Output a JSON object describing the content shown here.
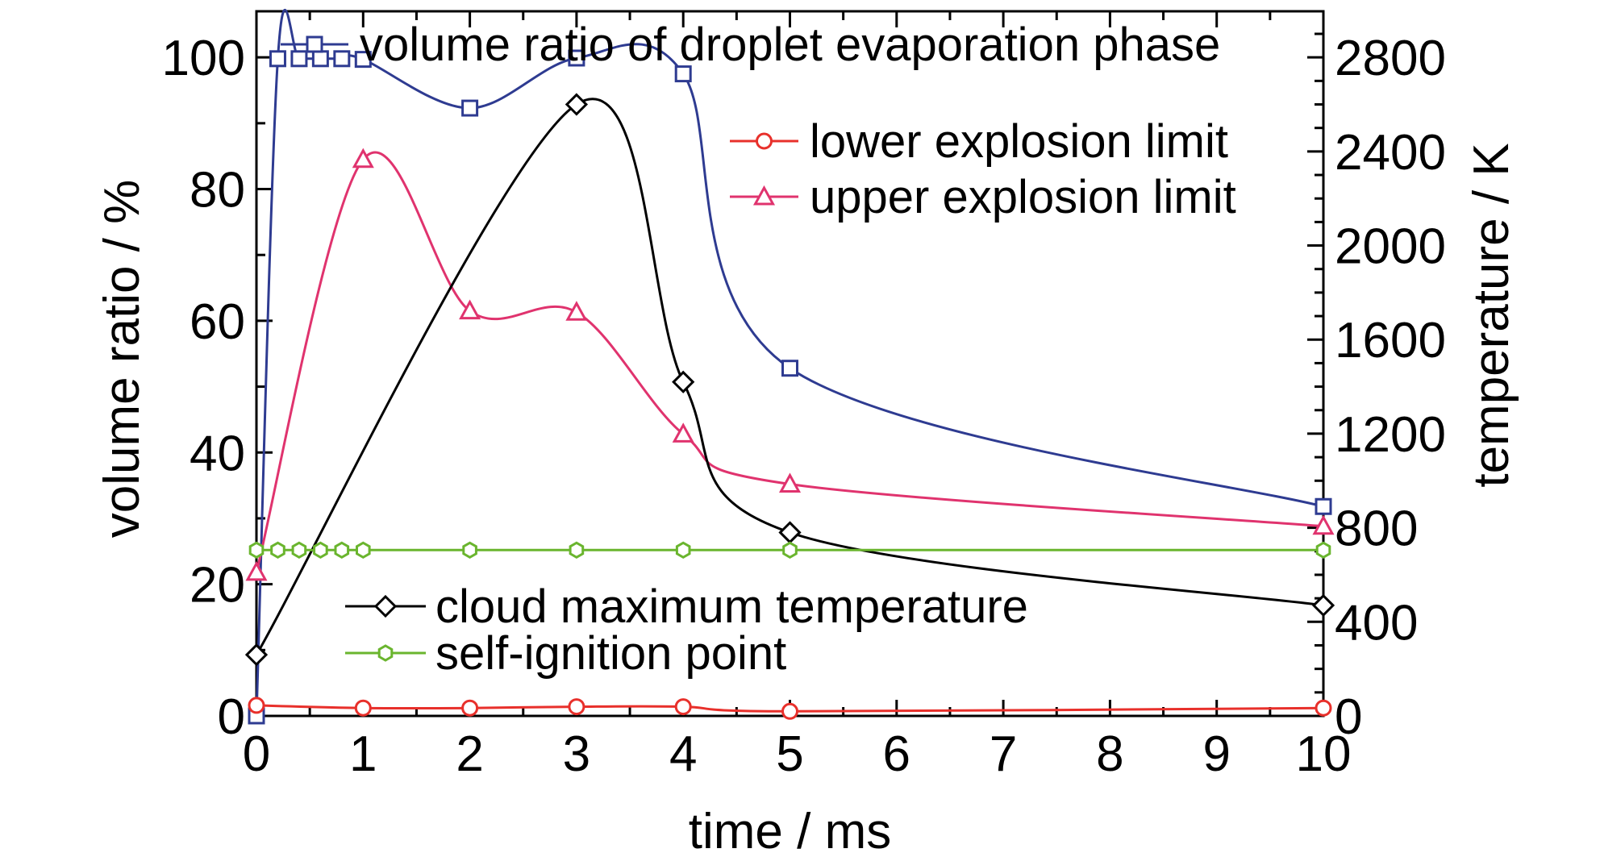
{
  "chart_data": {
    "type": "line",
    "title": "",
    "xlabel": "time / ms",
    "ylabel_left": "volume ratio / %",
    "ylabel_right": "temperature / K",
    "x_ticks": [
      "0",
      "1",
      "2",
      "3",
      "4",
      "5",
      "6",
      "7",
      "8",
      "9",
      "10"
    ],
    "y_left_ticks": [
      "0",
      "20",
      "40",
      "60",
      "80",
      "100"
    ],
    "y_right_ticks": [
      "0",
      "400",
      "800",
      "1200",
      "1600",
      "2000",
      "2400",
      "2800"
    ],
    "xlim": [
      0,
      10
    ],
    "ylim_left": [
      0,
      107
    ],
    "ylim_right": [
      0,
      2996
    ],
    "grid": false,
    "series": [
      {
        "name": "volume ratio of droplet evaporation phase",
        "axis": "left",
        "color": "#2e3b91",
        "marker": "square",
        "x": [
          0,
          0.2,
          0.4,
          0.6,
          0.8,
          1,
          2,
          3,
          4,
          5,
          10
        ],
        "y": [
          0,
          99.8,
          99.8,
          99.8,
          99.8,
          99.7,
          92.3,
          99.9,
          97.5,
          52.8,
          31.8
        ]
      },
      {
        "name": "lower explosion limit",
        "axis": "left",
        "color": "#e8302b",
        "marker": "circle",
        "x": [
          0,
          1,
          2,
          3,
          4,
          5,
          10
        ],
        "y": [
          1.6,
          1.2,
          1.2,
          1.4,
          1.4,
          0.7,
          1.2
        ]
      },
      {
        "name": "upper explosion limit",
        "axis": "left",
        "color": "#e0336e",
        "marker": "triangle",
        "x": [
          0,
          1,
          2,
          3,
          4,
          5,
          10
        ],
        "y": [
          21.8,
          84.5,
          61.5,
          61.3,
          42.8,
          35.2,
          28.8
        ]
      },
      {
        "name": "cloud maximum temperature",
        "axis": "right",
        "color": "#000000",
        "marker": "diamond",
        "x": [
          0,
          3,
          4,
          5,
          10
        ],
        "y": [
          260,
          2600,
          1420,
          780,
          470
        ]
      },
      {
        "name": "self-ignition point",
        "axis": "right",
        "color": "#6ab52e",
        "marker": "hexagon",
        "x": [
          0,
          0.2,
          0.4,
          0.6,
          0.8,
          1,
          2,
          3,
          4,
          5,
          10
        ],
        "y": [
          705,
          705,
          705,
          705,
          705,
          705,
          705,
          705,
          705,
          705,
          705
        ]
      }
    ]
  }
}
